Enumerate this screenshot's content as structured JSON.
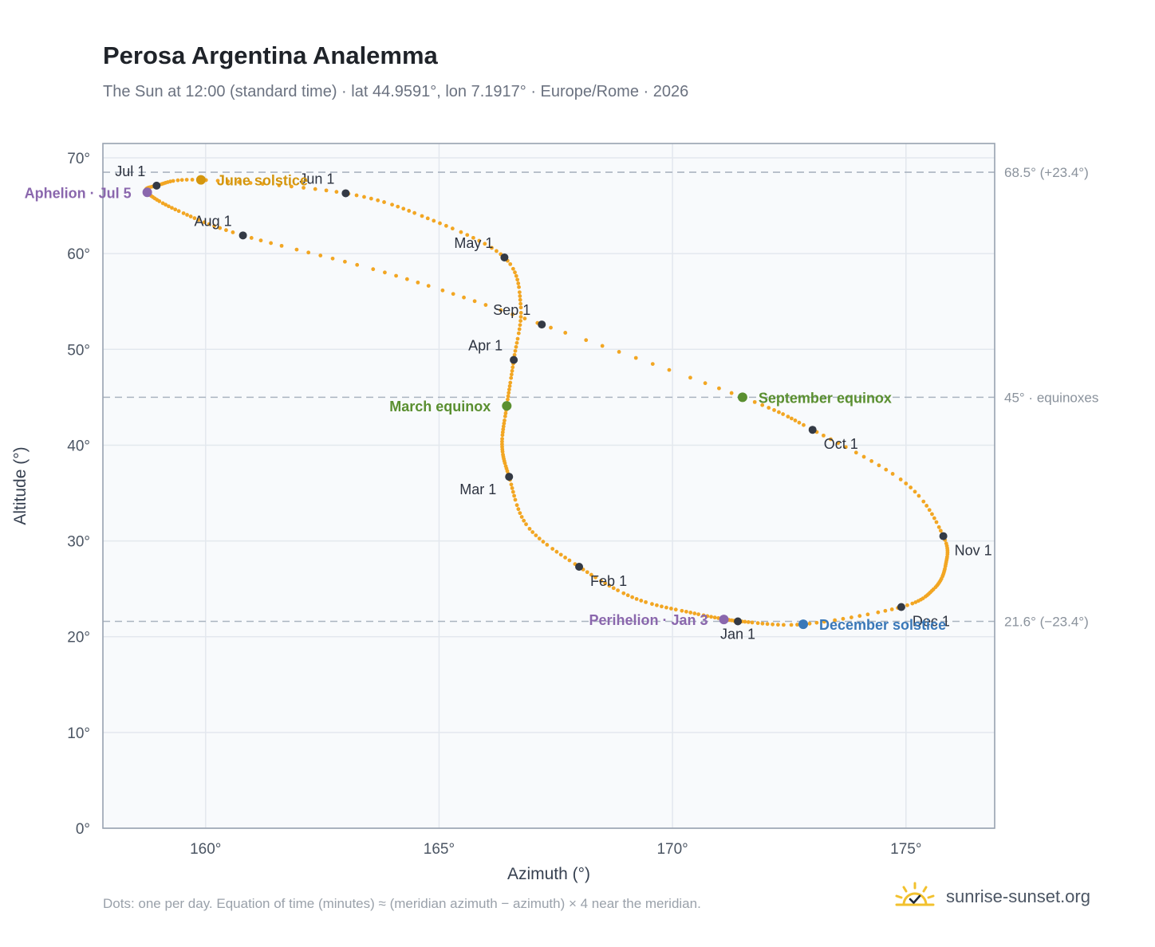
{
  "header": {
    "title": "Perosa Argentina Analemma",
    "subtitle": "The Sun at 12:00 (standard time) · lat 44.9591°, lon 7.1917° · Europe/Rome · 2026"
  },
  "footer": {
    "note": "Dots: one per day. Equation of time (minutes) ≈ (meridian azimuth − azimuth) × 4 near the meridian.",
    "brand": "sunrise-sunset.org"
  },
  "colors": {
    "path": "#f2a623",
    "month_marker": "#343a45",
    "apsis": "#8a67ad",
    "june_solstice": "#d4960e",
    "december_solstice": "#3a78b8",
    "equinox": "#5a8f30",
    "reference_line": "#aab4c0",
    "plot_background": "#f8fafc",
    "grid": "#e3e8ee"
  },
  "chart_data": {
    "type": "scatter",
    "xlabel": "Azimuth (°)",
    "ylabel": "Altitude (°)",
    "xlim": [
      157.8,
      176.9
    ],
    "ylim": [
      0,
      71.5
    ],
    "x_ticks": [
      160,
      165,
      170,
      175
    ],
    "x_tick_labels": [
      "160°",
      "165°",
      "170°",
      "175°"
    ],
    "y_ticks": [
      0,
      10,
      20,
      30,
      40,
      50,
      60,
      70
    ],
    "y_tick_labels": [
      "0°",
      "10°",
      "20°",
      "30°",
      "40°",
      "50°",
      "60°",
      "70°"
    ],
    "grid": true,
    "path_anchors": [
      {
        "date": "Jan 1",
        "az": 171.4,
        "alt": 21.6
      },
      {
        "date": "Jan 10",
        "az": 170.5,
        "alt": 22.4
      },
      {
        "date": "Jan 20",
        "az": 169.2,
        "alt": 24.0
      },
      {
        "date": "Feb 1",
        "az": 168.0,
        "alt": 27.3
      },
      {
        "date": "Feb 15",
        "az": 166.9,
        "alt": 31.5
      },
      {
        "date": "Mar 1",
        "az": 166.5,
        "alt": 36.7
      },
      {
        "date": "Mar 10",
        "az": 166.35,
        "alt": 40.0
      },
      {
        "date": "Mar 20",
        "az": 166.45,
        "alt": 44.1
      },
      {
        "date": "Apr 1",
        "az": 166.6,
        "alt": 48.9
      },
      {
        "date": "Apr 15",
        "az": 166.75,
        "alt": 54.5
      },
      {
        "date": "May 1",
        "az": 166.4,
        "alt": 59.6
      },
      {
        "date": "May 15",
        "az": 164.8,
        "alt": 63.6
      },
      {
        "date": "Jun 1",
        "az": 163.0,
        "alt": 66.3
      },
      {
        "date": "Jun 21",
        "az": 159.9,
        "alt": 67.7
      },
      {
        "date": "Jul 1",
        "az": 158.95,
        "alt": 67.1
      },
      {
        "date": "Jul 5",
        "az": 158.75,
        "alt": 66.4
      },
      {
        "date": "Jul 15",
        "az": 159.4,
        "alt": 64.5
      },
      {
        "date": "Aug 1",
        "az": 160.8,
        "alt": 61.9
      },
      {
        "date": "Aug 15",
        "az": 164.0,
        "alt": 57.8
      },
      {
        "date": "Sep 1",
        "az": 167.2,
        "alt": 52.6
      },
      {
        "date": "Sep 23",
        "az": 171.5,
        "alt": 45.0
      },
      {
        "date": "Oct 1",
        "az": 173.0,
        "alt": 41.6
      },
      {
        "date": "Oct 15",
        "az": 175.0,
        "alt": 36.0
      },
      {
        "date": "Nov 1",
        "az": 175.8,
        "alt": 30.5
      },
      {
        "date": "Nov 10",
        "az": 175.85,
        "alt": 27.5
      },
      {
        "date": "Nov 20",
        "az": 175.6,
        "alt": 25.0
      },
      {
        "date": "Dec 1",
        "az": 174.9,
        "alt": 23.1
      },
      {
        "date": "Dec 21",
        "az": 172.8,
        "alt": 21.3
      },
      {
        "date": "Dec 31",
        "az": 171.45,
        "alt": 21.6
      }
    ],
    "month_markers": [
      {
        "label": "Jan 1",
        "az": 171.4,
        "alt": 21.6,
        "anchor": "below"
      },
      {
        "label": "Feb 1",
        "az": 168.0,
        "alt": 27.3,
        "anchor": "below-right"
      },
      {
        "label": "Mar 1",
        "az": 166.5,
        "alt": 36.7,
        "anchor": "below-left"
      },
      {
        "label": "Apr 1",
        "az": 166.6,
        "alt": 48.9,
        "anchor": "above-left"
      },
      {
        "label": "May 1",
        "az": 166.4,
        "alt": 59.6,
        "anchor": "above-left"
      },
      {
        "label": "Jun 1",
        "az": 163.0,
        "alt": 66.3,
        "anchor": "above-left"
      },
      {
        "label": "Jul 1",
        "az": 158.95,
        "alt": 67.1,
        "anchor": "above-left"
      },
      {
        "label": "Aug 1",
        "az": 160.8,
        "alt": 61.9,
        "anchor": "above-left"
      },
      {
        "label": "Sep 1",
        "az": 167.2,
        "alt": 52.6,
        "anchor": "above-left"
      },
      {
        "label": "Oct 1",
        "az": 173.0,
        "alt": 41.6,
        "anchor": "below-right"
      },
      {
        "label": "Nov 1",
        "az": 175.8,
        "alt": 30.5,
        "anchor": "below-right"
      },
      {
        "label": "Dec 1",
        "az": 174.9,
        "alt": 23.1,
        "anchor": "below-right"
      }
    ],
    "events": [
      {
        "label": "Aphelion · Jul 5",
        "az": 158.75,
        "alt": 66.4,
        "kind": "apsis",
        "side": "left"
      },
      {
        "label": "Perihelion · Jan 3",
        "az": 171.1,
        "alt": 21.8,
        "kind": "apsis",
        "side": "left"
      },
      {
        "label": "June solstice",
        "az": 159.9,
        "alt": 67.7,
        "kind": "june_solstice",
        "side": "right"
      },
      {
        "label": "December solstice",
        "az": 172.8,
        "alt": 21.3,
        "kind": "december_solstice",
        "side": "right"
      },
      {
        "label": "March equinox",
        "az": 166.45,
        "alt": 44.1,
        "kind": "equinox",
        "side": "left"
      },
      {
        "label": "September equinox",
        "az": 171.5,
        "alt": 45.0,
        "kind": "equinox",
        "side": "right"
      }
    ],
    "reference_lines": [
      {
        "alt": 68.5,
        "label": "68.5° (+23.4°)"
      },
      {
        "alt": 45.0,
        "label": "45° · equinoxes"
      },
      {
        "alt": 21.6,
        "label": "21.6° (−23.4°)"
      }
    ]
  }
}
